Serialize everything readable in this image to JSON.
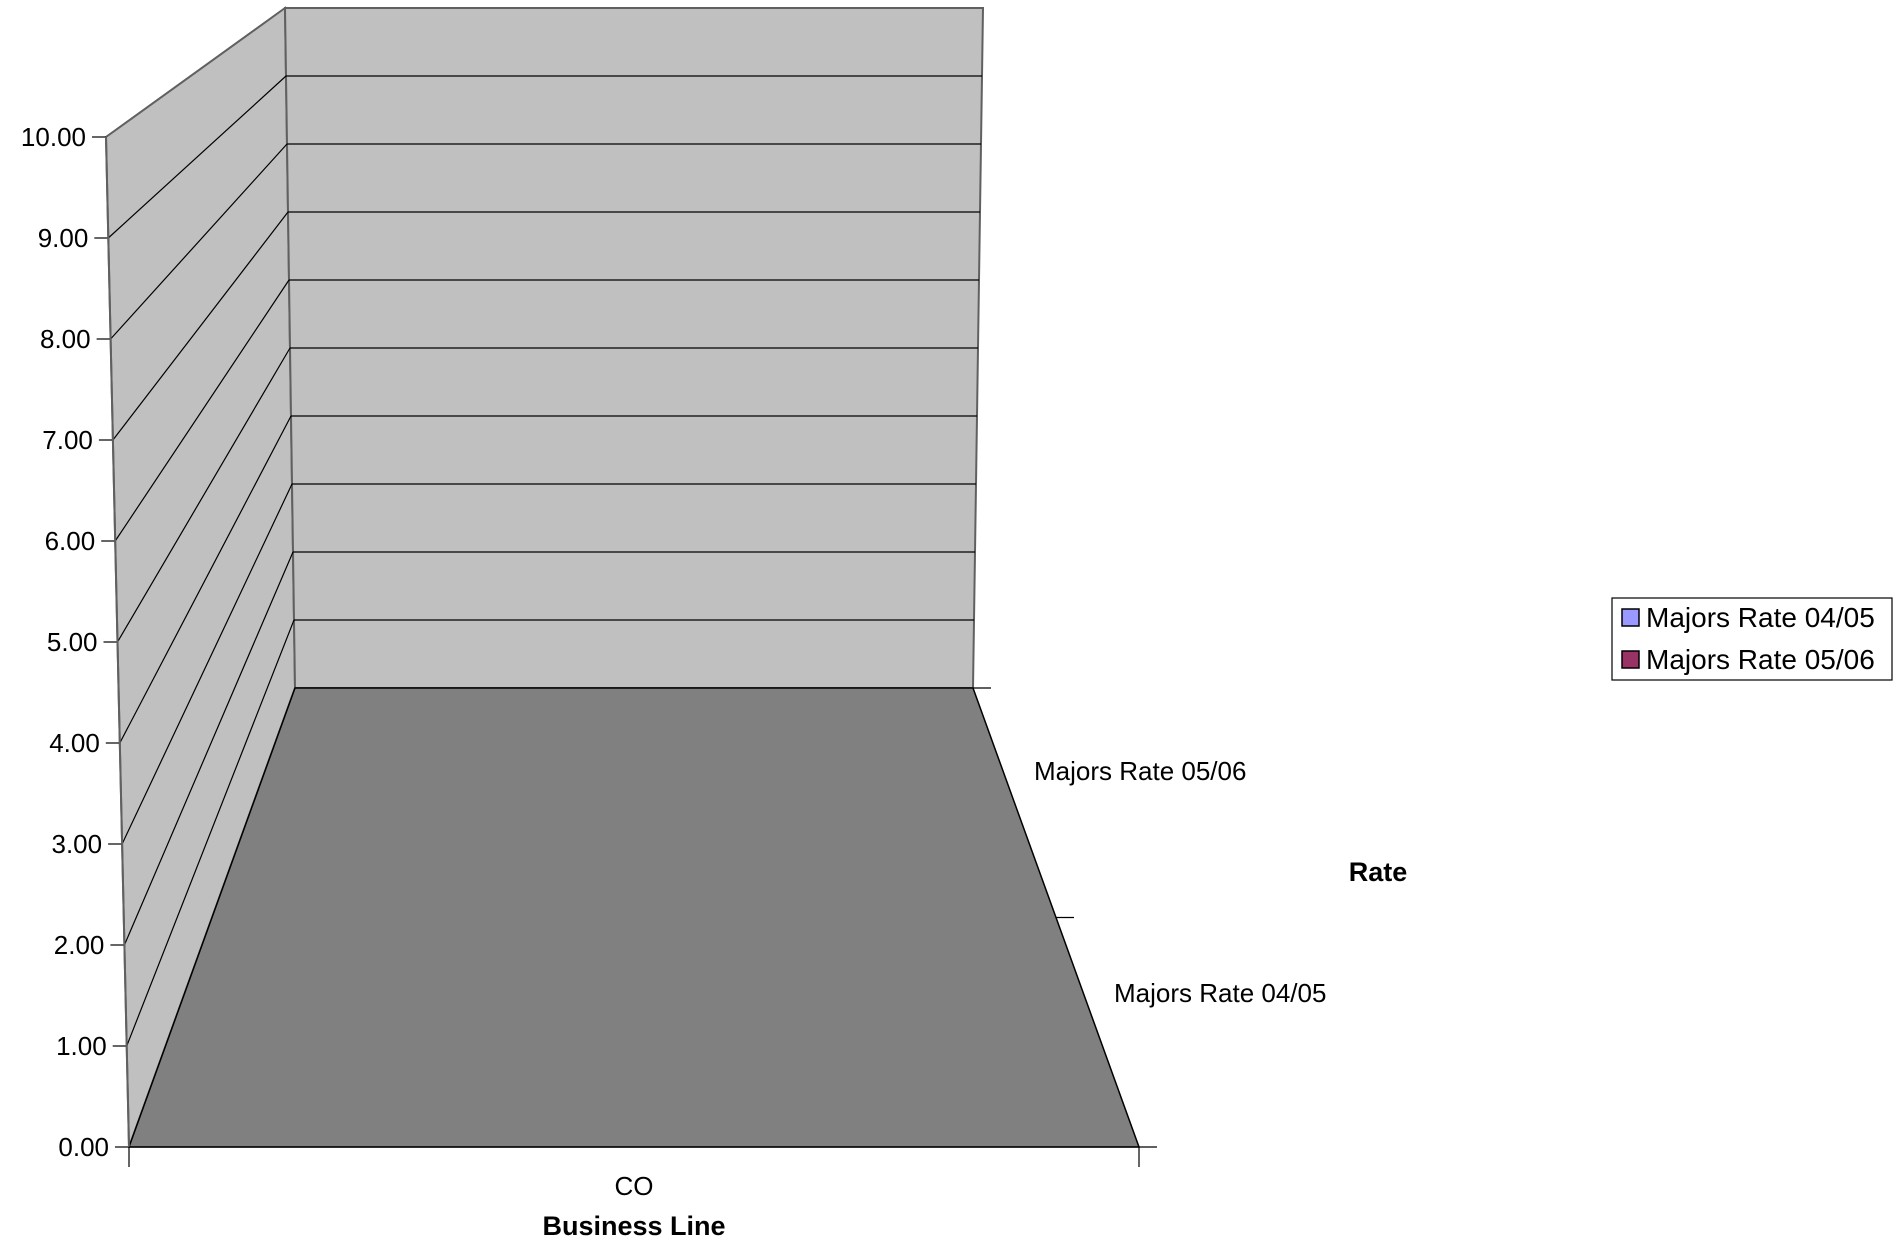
{
  "chart_data": {
    "type": "bar",
    "subtype": "3d-column",
    "title": "",
    "categories": [
      "CO"
    ],
    "xlabel": "Business Line",
    "zlabel": "Rate",
    "ylabel": "",
    "ylim": [
      0,
      10
    ],
    "yticks": [
      "0.00",
      "1.00",
      "2.00",
      "3.00",
      "4.00",
      "5.00",
      "6.00",
      "7.00",
      "8.00",
      "9.00",
      "10.00"
    ],
    "depth_categories": [
      "Majors Rate 04/05",
      "Majors Rate 05/06"
    ],
    "series": [
      {
        "name": "Majors Rate 04/05",
        "color": "#9999ff",
        "values": [
          0
        ]
      },
      {
        "name": "Majors Rate 05/06",
        "color": "#993366",
        "values": [
          0
        ]
      }
    ],
    "grid": true,
    "legend": "right",
    "colors": {
      "wall": "#c0c0c0",
      "floor": "#808080",
      "gridline": "#000000"
    }
  }
}
